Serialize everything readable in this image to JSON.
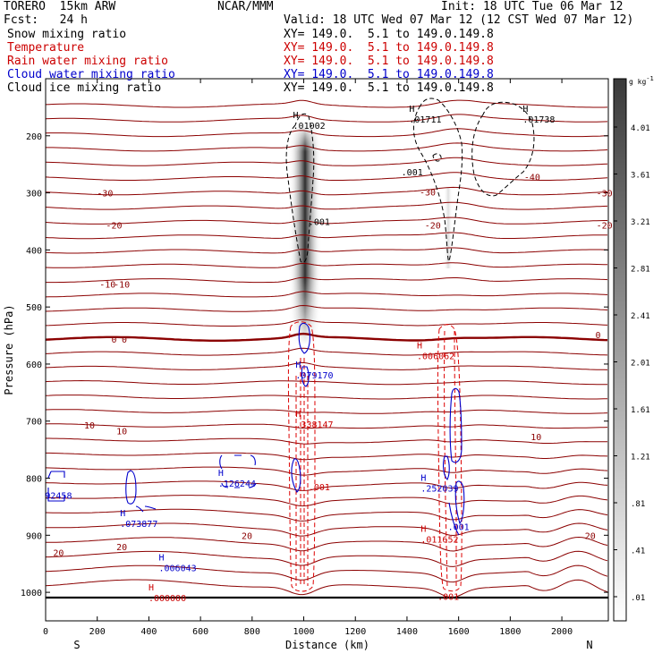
{
  "header": {
    "model": "TORERO  15km ARW",
    "center": "NCAR/MMM",
    "init": "Init: 18 UTC Tue 06 Mar 12",
    "fcst": "Fcst:   24 h",
    "valid": "Valid: 18 UTC Wed 07 Mar 12 (12 CST Wed 07 Mar 12)"
  },
  "colors": {
    "temperature": "#8b0000",
    "rain": "#e00000",
    "cloud_water": "#0000cc",
    "cloud_ice": "#000000",
    "snow": "#000000"
  },
  "legend": [
    {
      "label": "Snow mixing ratio",
      "xy": "",
      "color": "#000000"
    },
    {
      "label": "Temperature",
      "xy": "XY= 149.0.  5.1 to 149.0.149.8",
      "color": "#cc0000"
    },
    {
      "label": "Rain water mixing ratio",
      "xy": "XY= 149.0.  5.1 to 149.0.149.8",
      "color": "#cc0000"
    },
    {
      "label": "Cloud water mixing ratio",
      "xy": "XY= 149.0.  5.1 to 149.0.149.8",
      "color": "#0000cc"
    },
    {
      "label": "Cloud ice mixing ratio",
      "xy": "XY= 149.0.  5.1 to 149.0.149.8",
      "color": "#000000"
    }
  ],
  "legend_first_xy": "XY= 149.0.  5.1 to 149.0.149.8",
  "chart_data": {
    "type": "cross-section",
    "xlabel": "Distance (km)",
    "ylabel": "Pressure (hPa)",
    "xlim": [
      0,
      2180
    ],
    "ylim": [
      1050,
      100
    ],
    "xticks": [
      0,
      200,
      400,
      600,
      800,
      1000,
      1200,
      1400,
      1600,
      1800,
      2000
    ],
    "yticks": [
      200,
      300,
      400,
      500,
      600,
      700,
      800,
      900,
      1000
    ],
    "x_end_labels": {
      "left": "S",
      "right": "N"
    },
    "colorbar": {
      "units": "g kg",
      "units_exp": "-1",
      "levels": [
        ".01",
        ".41",
        ".81",
        "1.21",
        "1.61",
        "2.01",
        "2.41",
        "2.81",
        "3.21",
        "3.61",
        "4.01"
      ]
    },
    "temperature_contour_labels": [
      {
        "text": "-30",
        "x": 230,
        "p": 300
      },
      {
        "text": "-30",
        "x": 1480,
        "p": 298
      },
      {
        "text": "-30",
        "x": 2165,
        "p": 300
      },
      {
        "text": "-40",
        "x": 1885,
        "p": 272
      },
      {
        "text": "-20",
        "x": 265,
        "p": 356
      },
      {
        "text": "-20",
        "x": 1500,
        "p": 356
      },
      {
        "text": "-20",
        "x": 2165,
        "p": 356
      },
      {
        "text": "-10",
        "x": 240,
        "p": 460
      },
      {
        "text": "-10",
        "x": 295,
        "p": 460
      },
      {
        "text": "0",
        "x": 265,
        "p": 556
      },
      {
        "text": "0",
        "x": 305,
        "p": 556
      },
      {
        "text": "0",
        "x": 2140,
        "p": 548
      },
      {
        "text": "10",
        "x": 170,
        "p": 707
      },
      {
        "text": "10",
        "x": 295,
        "p": 717
      },
      {
        "text": "10",
        "x": 1900,
        "p": 727
      },
      {
        "text": "20",
        "x": 50,
        "p": 930
      },
      {
        "text": "20",
        "x": 295,
        "p": 920
      },
      {
        "text": "20",
        "x": 780,
        "p": 900
      },
      {
        "text": "20",
        "x": 2110,
        "p": 900
      }
    ],
    "max_labels": [
      {
        "h": "H",
        "value": ".01002",
        "x": 1000,
        "p": 185,
        "color": "#000000"
      },
      {
        "h": "H",
        "value": ".01711",
        "x": 1450,
        "p": 174,
        "color": "#000000"
      },
      {
        "h": "H",
        "value": ".01738",
        "x": 1890,
        "p": 174,
        "color": "#000000"
      },
      {
        "h": "H",
        "value": ".006062",
        "x": 1480,
        "p": 588,
        "color": "#cc0000"
      },
      {
        "h": "H",
        "value": ".079170",
        "x": 1010,
        "p": 622,
        "color": "#0000cc"
      },
      {
        "h": "H",
        "value": ".338147",
        "x": 1010,
        "p": 708,
        "color": "#cc0000"
      },
      {
        "h": "H",
        "value": ".252039",
        "x": 1495,
        "p": 820,
        "color": "#0000cc"
      },
      {
        "h": "H",
        "value": ".126244",
        "x": 710,
        "p": 812,
        "color": "#0000cc"
      },
      {
        "h": "H",
        "value": ".073877",
        "x": 330,
        "p": 882,
        "color": "#0000cc"
      },
      {
        "h": "H",
        "value": ".011652",
        "x": 1495,
        "p": 910,
        "color": "#cc0000"
      },
      {
        "h": "H",
        "value": ".006043",
        "x": 480,
        "p": 960,
        "color": "#0000cc"
      },
      {
        "h": "H",
        "value": ".000000",
        "x": 440,
        "p": 1012,
        "color": "#cc0000"
      }
    ],
    "min_value_labels": [
      {
        "value": ".001",
        "x": 1060,
        "p": 350,
        "color": "#000000"
      },
      {
        "value": ".001",
        "x": 1420,
        "p": 263,
        "color": "#000000"
      },
      {
        "value": ".001",
        "x": 1060,
        "p": 815,
        "color": "#cc0000"
      },
      {
        "value": ".001",
        "x": 1600,
        "p": 885,
        "color": "#0000cc"
      },
      {
        "value": ".001",
        "x": 1560,
        "p": 1007,
        "color": "#cc0000"
      },
      {
        "value": "92458",
        "x": 50,
        "p": 830,
        "color": "#0000cc"
      }
    ]
  }
}
